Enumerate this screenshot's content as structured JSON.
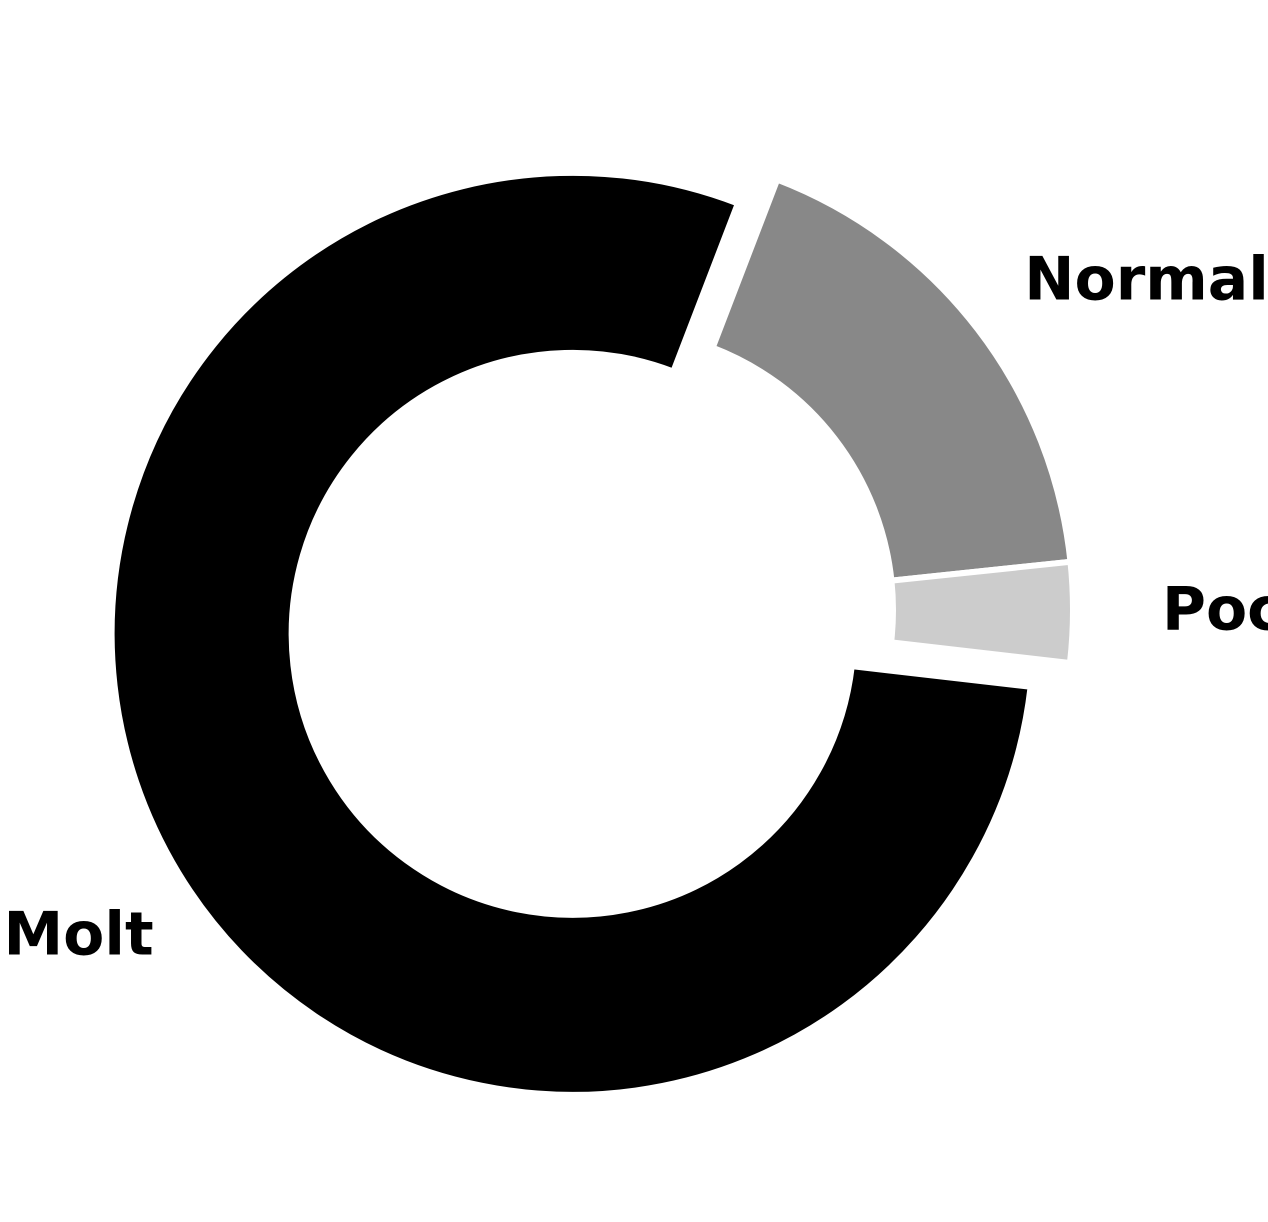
{
  "chart_data": {
    "type": "pie",
    "variant": "donut",
    "title": "",
    "slices": [
      {
        "label": "Normal",
        "value": 17.5,
        "color": "#888888"
      },
      {
        "label": "Poc",
        "value": 3.5,
        "color": "#cccccc"
      },
      {
        "label": "Molt",
        "value": 79.0,
        "color": "#000000",
        "exploded": true
      }
    ],
    "start_angle_deg": 69,
    "direction": "clockwise",
    "legend": "none"
  }
}
